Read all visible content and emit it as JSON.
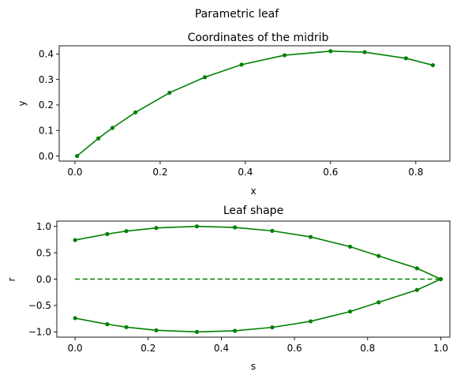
{
  "figure_title": "Parametric leaf",
  "colors": {
    "series": "#008000",
    "axes": "#000000",
    "background": "#ffffff"
  },
  "chart_data": [
    {
      "id": "midrib",
      "type": "line",
      "title": "Coordinates of the midrib",
      "xlabel": "x",
      "ylabel": "y",
      "xlim": [
        -0.037,
        0.88
      ],
      "ylim": [
        -0.02,
        0.432
      ],
      "xticks": [
        0.0,
        0.2,
        0.4,
        0.6,
        0.8
      ],
      "xtick_labels": [
        "0.0",
        "0.2",
        "0.4",
        "0.6",
        "0.8"
      ],
      "yticks": [
        0.0,
        0.1,
        0.2,
        0.3,
        0.4
      ],
      "ytick_labels": [
        "0.0",
        "0.1",
        "0.2",
        "0.3",
        "0.4"
      ],
      "grid": false,
      "series": [
        {
          "style": "solid",
          "marker": "dot",
          "x": [
            0.005,
            0.055,
            0.088,
            0.142,
            0.222,
            0.305,
            0.391,
            0.492,
            0.6,
            0.68,
            0.777,
            0.84
          ],
          "y": [
            0.0,
            0.069,
            0.11,
            0.171,
            0.248,
            0.309,
            0.358,
            0.395,
            0.411,
            0.407,
            0.383,
            0.356
          ]
        }
      ]
    },
    {
      "id": "leaf-shape",
      "type": "line",
      "title": "Leaf shape",
      "xlabel": "s",
      "ylabel": "r",
      "xlim": [
        -0.05,
        1.025
      ],
      "ylim": [
        -1.1,
        1.1
      ],
      "xticks": [
        0.0,
        0.2,
        0.4,
        0.6,
        0.8,
        1.0
      ],
      "xtick_labels": [
        "0.0",
        "0.2",
        "0.4",
        "0.6",
        "0.8",
        "1.0"
      ],
      "yticks": [
        -1.0,
        -0.5,
        0.0,
        0.5,
        1.0
      ],
      "ytick_labels": [
        "−1.0",
        "−0.5",
        "0.0",
        "0.5",
        "1.0"
      ],
      "grid": false,
      "series": [
        {
          "style": "solid",
          "marker": "dot",
          "x": [
            0.0,
            0.088,
            0.14,
            0.222,
            0.333,
            0.437,
            0.539,
            0.644,
            0.752,
            0.83,
            0.935,
            1.0
          ],
          "y": [
            0.74,
            0.855,
            0.91,
            0.97,
            1.0,
            0.98,
            0.915,
            0.8,
            0.615,
            0.44,
            0.205,
            0.0
          ]
        },
        {
          "style": "solid",
          "marker": "dot",
          "x": [
            0.0,
            0.088,
            0.14,
            0.222,
            0.333,
            0.437,
            0.539,
            0.644,
            0.752,
            0.83,
            0.935,
            1.0
          ],
          "y": [
            -0.74,
            -0.855,
            -0.91,
            -0.97,
            -1.0,
            -0.98,
            -0.915,
            -0.8,
            -0.615,
            -0.44,
            -0.205,
            0.0
          ]
        },
        {
          "style": "dashed",
          "marker": "none",
          "x": [
            0.0,
            1.0
          ],
          "y": [
            0.0,
            0.0
          ]
        }
      ]
    }
  ]
}
